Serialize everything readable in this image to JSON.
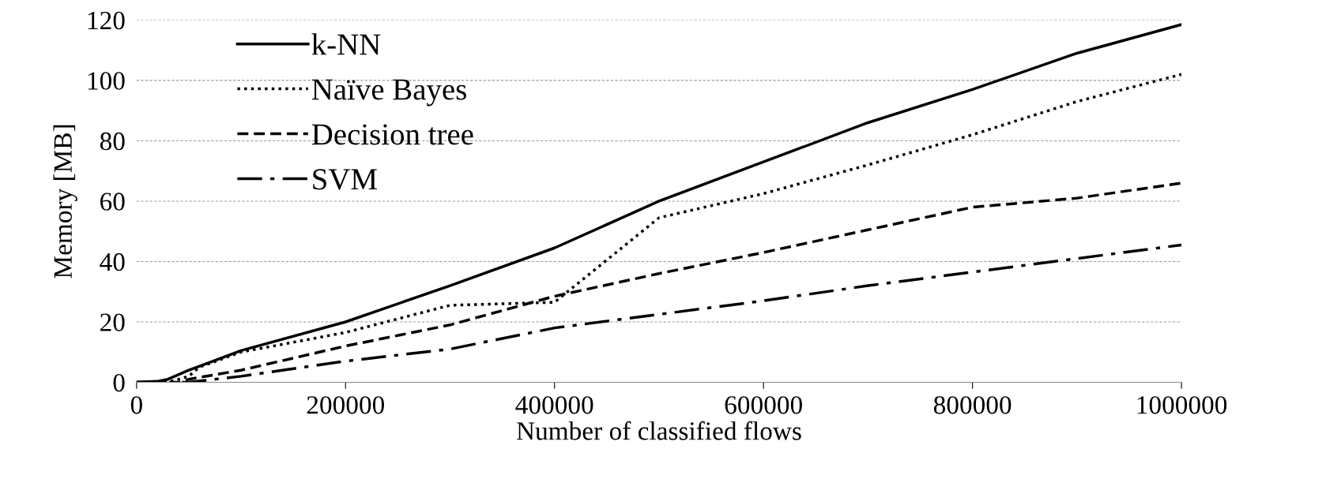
{
  "chart_data": {
    "type": "line",
    "xlabel": "Number of classified flows",
    "ylabel": "Memory [MB]",
    "xlim": [
      0,
      1000000
    ],
    "xticks": [
      0,
      200000,
      400000,
      600000,
      800000,
      1000000
    ],
    "ylim": [
      0,
      120
    ],
    "yticks": [
      0,
      20,
      40,
      60,
      80,
      100,
      120
    ],
    "grid": "y",
    "legend": "top left",
    "marker": "none",
    "series": [
      {
        "name": "k-NN",
        "color": "#000000",
        "line_style": "solid",
        "x": [
          0,
          20000,
          30000,
          50000,
          100000,
          200000,
          300000,
          400000,
          500000,
          600000,
          700000,
          800000,
          900000,
          1000000
        ],
        "values": [
          0,
          0.3,
          1,
          4,
          10.5,
          20,
          32,
          44.5,
          60,
          73,
          86,
          97,
          109,
          118.5
        ]
      },
      {
        "name": "Naïve Bayes",
        "color": "#000000",
        "line_style": "dotted",
        "x": [
          0,
          30000,
          50000,
          60000,
          100000,
          200000,
          300000,
          400000,
          500000,
          600000,
          700000,
          800000,
          900000,
          1000000
        ],
        "values": [
          0,
          0,
          2,
          5,
          10,
          16.5,
          25.5,
          26.5,
          54.5,
          62.5,
          72,
          82,
          93,
          102
        ]
      },
      {
        "name": "Decision tree",
        "color": "#000000",
        "line_style": "dashed",
        "x": [
          0,
          40000,
          50000,
          100000,
          200000,
          300000,
          400000,
          500000,
          600000,
          700000,
          800000,
          900000,
          1000000
        ],
        "values": [
          0,
          0,
          1,
          4,
          12,
          19,
          28.5,
          36,
          43,
          50.5,
          58,
          61,
          66
        ]
      },
      {
        "name": "SVM",
        "color": "#000000",
        "line_style": "dashdot",
        "x": [
          0,
          50000,
          100000,
          200000,
          300000,
          400000,
          500000,
          600000,
          700000,
          800000,
          900000,
          1000000
        ],
        "values": [
          0,
          0,
          2,
          7,
          11,
          18,
          22.5,
          27,
          32,
          36.5,
          41,
          45.5
        ]
      }
    ]
  }
}
